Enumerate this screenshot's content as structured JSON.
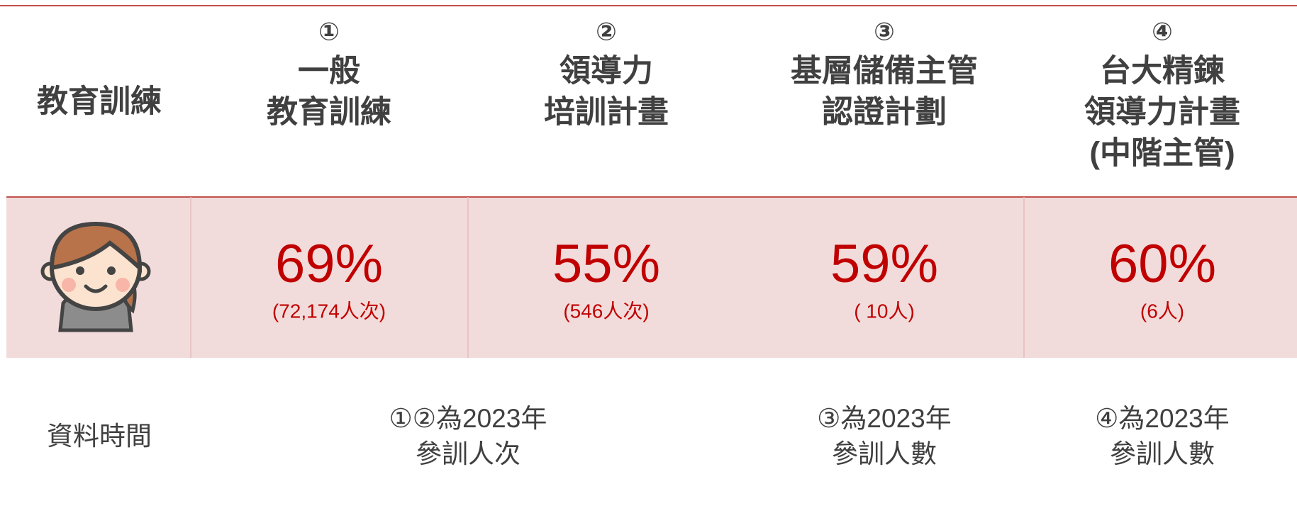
{
  "header": {
    "corner": "教育訓練",
    "columns": [
      {
        "number": "①",
        "lines": [
          "一般",
          "教育訓練"
        ]
      },
      {
        "number": "②",
        "lines": [
          "領導力",
          "培訓計畫"
        ]
      },
      {
        "number": "③",
        "lines": [
          "基層儲備主管",
          "認證計劃"
        ]
      },
      {
        "number": "④",
        "lines": [
          "台大精鍊",
          "領導力計畫",
          "(中階主管)"
        ]
      }
    ]
  },
  "stats": [
    {
      "percent": "69%",
      "count": "(72,174人次)"
    },
    {
      "percent": "55%",
      "count": "(546人次)"
    },
    {
      "percent": "59%",
      "count": "( 10人)"
    },
    {
      "percent": "60%",
      "count": "(6人)"
    }
  ],
  "footer": {
    "label": "資料時間",
    "notes": [
      {
        "lines": [
          "①②為2023年",
          "參訓人次"
        ]
      },
      {
        "lines": [
          "③為2023年",
          "參訓人數"
        ]
      },
      {
        "lines": [
          "④為2023年",
          "參訓人數"
        ]
      }
    ]
  }
}
